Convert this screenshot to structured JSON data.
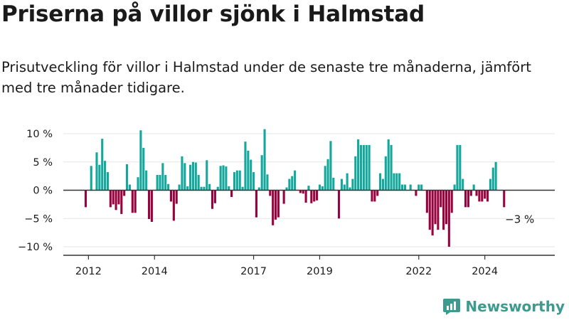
{
  "title": "Priserna på villor sjönk i Halmstad",
  "subtitle": "Prisutveckling för villor i Halmstad under de senaste tre månaderna, jämfört med tre månader tidigare.",
  "brand": "Newsworthy",
  "colors": {
    "positive": "#14a79c",
    "negative": "#98023e",
    "axis": "#333333",
    "grid": "#e6e6e6",
    "brand": "#3d9a8e"
  },
  "chart_data": {
    "type": "bar",
    "y_unit": "%",
    "ylim": [
      -11,
      12
    ],
    "y_ticks": [
      10,
      5,
      0,
      -5,
      -10
    ],
    "y_tick_labels": [
      "10 %",
      "5 %",
      "0 %",
      "−5 %",
      "−10 %"
    ],
    "x_ticks": [
      2012,
      2014,
      2017,
      2019,
      2022,
      2024
    ],
    "x_tick_labels": [
      "2012",
      "2014",
      "2017",
      "2019",
      "2022",
      "2024"
    ],
    "start": "2011-12",
    "values": [
      -3,
      0,
      4.3,
      0,
      6.7,
      4.5,
      9.1,
      5.2,
      3.2,
      -3,
      -2.5,
      -3.5,
      -2.5,
      -4.2,
      -1,
      4.6,
      1,
      -4,
      -4,
      2.3,
      10.6,
      7.5,
      3.5,
      -5.1,
      -5.6,
      0,
      2.7,
      2.7,
      4.8,
      2.7,
      1.1,
      -2,
      -5.4,
      -2.4,
      1,
      6,
      4.8,
      0.7,
      4.5,
      5,
      4.9,
      2.7,
      0.6,
      0.6,
      5.3,
      1.1,
      -3.3,
      -2.3,
      0.6,
      4.3,
      4.4,
      4.2,
      0.7,
      -1.2,
      3.2,
      3.5,
      3.5,
      0.6,
      8.6,
      7,
      5.4,
      3.2,
      -4.8,
      0.5,
      6.2,
      10.8,
      2.8,
      -1,
      -6.2,
      -5.2,
      -4.8,
      0,
      -2.4,
      0.5,
      2,
      2.5,
      3.5,
      0,
      -0.5,
      -0.6,
      -2.2,
      0.8,
      -2.3,
      -2,
      -1.8,
      1,
      0.7,
      4.3,
      5.5,
      8.7,
      2.2,
      0,
      -5,
      2,
      1,
      3,
      0.5,
      2,
      6,
      9,
      8,
      8,
      8,
      8,
      -2,
      -2,
      -1,
      3,
      2,
      6,
      9,
      8,
      3,
      3,
      3,
      1,
      1,
      0,
      1,
      0,
      -1,
      1,
      1,
      0,
      -4,
      -7,
      -8,
      -6,
      -7,
      -3,
      -7,
      -6,
      -10,
      -4,
      1,
      8,
      8,
      2,
      -3,
      -3,
      -1,
      1,
      -1,
      -2,
      -2,
      -1.5,
      -2,
      2,
      4,
      5,
      0,
      0,
      -3
    ],
    "last_value_label": "−3 %"
  }
}
